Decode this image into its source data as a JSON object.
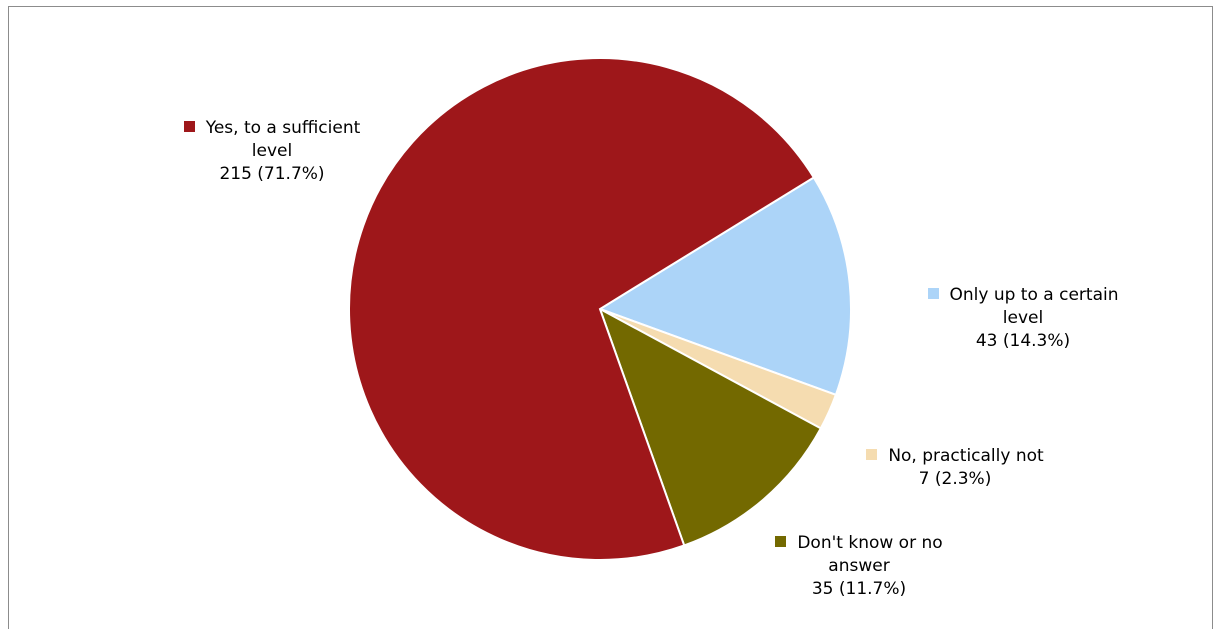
{
  "chart_data": {
    "type": "pie",
    "title": "",
    "slices": [
      {
        "label": "Yes, to a sufficient level",
        "label_lines": [
          "Yes, to a sufficient",
          "level"
        ],
        "count": 215,
        "percent": 71.7,
        "value_text": "215 (71.7%)",
        "color": "#9e171a"
      },
      {
        "label": "Only up to a certain level",
        "label_lines": [
          "Only up to a certain",
          "level"
        ],
        "count": 43,
        "percent": 14.3,
        "value_text": "43 (14.3%)",
        "color": "#acd4f8"
      },
      {
        "label": "No, practically not",
        "label_lines": [
          "No, practically not"
        ],
        "count": 7,
        "percent": 2.3,
        "value_text": "7 (2.3%)",
        "color": "#f5dcb0"
      },
      {
        "label": "Don't know or no answer",
        "label_lines": [
          "Don't know or no",
          "answer"
        ],
        "count": 35,
        "percent": 11.7,
        "value_text": "35 (11.7%)",
        "color": "#736900"
      }
    ],
    "legend": "none",
    "label_position": "outside"
  }
}
